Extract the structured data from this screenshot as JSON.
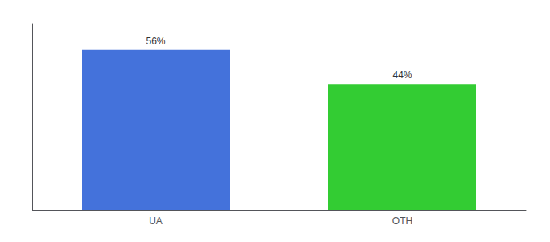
{
  "chart_data": {
    "type": "bar",
    "categories": [
      "UA",
      "OTH"
    ],
    "values": [
      56,
      44
    ],
    "value_labels": [
      "56%",
      "44%"
    ],
    "colors": [
      "#4472db",
      "#33cc33"
    ],
    "ylim": [
      0,
      65
    ],
    "data_labels": true,
    "tick_labels": "x",
    "grid": false
  }
}
